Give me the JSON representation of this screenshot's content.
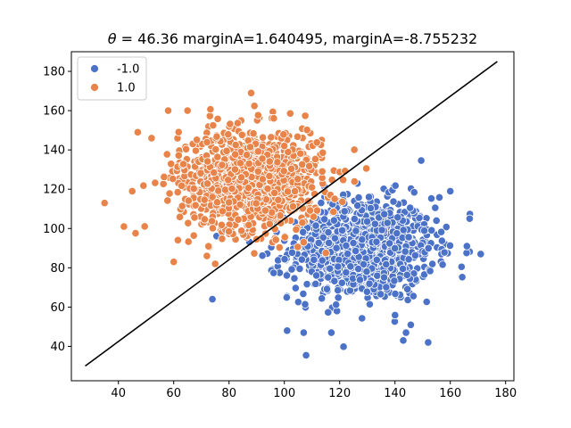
{
  "chart_data": {
    "type": "scatter",
    "title": "θ = 46.36 marginA=1.640495, marginA=-8.755232",
    "title_theta": "θ",
    "title_rest": " = 46.36 marginA=1.640495, marginA=-8.755232",
    "xlabel": "",
    "ylabel": "",
    "xlim": [
      23,
      183
    ],
    "ylim": [
      22.5,
      190
    ],
    "xticks": [
      40,
      60,
      80,
      100,
      120,
      140,
      160,
      180
    ],
    "yticks": [
      40,
      60,
      80,
      100,
      120,
      140,
      160,
      180
    ],
    "xtick_labels": [
      "40",
      "60",
      "80",
      "100",
      "120",
      "140",
      "160",
      "180"
    ],
    "ytick_labels": [
      "40",
      "60",
      "80",
      "100",
      "120",
      "140",
      "160",
      "180"
    ],
    "grid": false,
    "legend_position": "upper-left",
    "series": [
      {
        "name": "-1.0",
        "color": "#4c72c8",
        "center": [
          128,
          90
        ],
        "spread": [
          13,
          13
        ],
        "approx_count": 1000,
        "outliers": [
          [
            74,
            64
          ],
          [
            101,
            48
          ],
          [
            107,
            47
          ],
          [
            117,
            47
          ],
          [
            143,
            43
          ],
          [
            144,
            47
          ],
          [
            152,
            42
          ],
          [
            171,
            87
          ],
          [
            166,
            91
          ],
          [
            167,
            105
          ],
          [
            160,
            119
          ],
          [
            155,
            104
          ]
        ]
      },
      {
        "name": "1.0",
        "color": "#e8844a",
        "center": [
          88,
          125
        ],
        "spread": [
          13,
          13
        ],
        "approx_count": 1000,
        "outliers": [
          [
            35,
            113
          ],
          [
            42,
            101
          ],
          [
            45,
            119
          ],
          [
            47,
            149
          ],
          [
            52,
            146
          ],
          [
            58,
            160
          ],
          [
            65,
            160
          ],
          [
            60,
            83
          ],
          [
            88,
            169
          ],
          [
            72,
            86
          ],
          [
            75,
            82
          ]
        ]
      }
    ],
    "decision_line": {
      "color": "#000000",
      "points": [
        [
          28,
          30
        ],
        [
          177,
          185
        ]
      ]
    }
  }
}
